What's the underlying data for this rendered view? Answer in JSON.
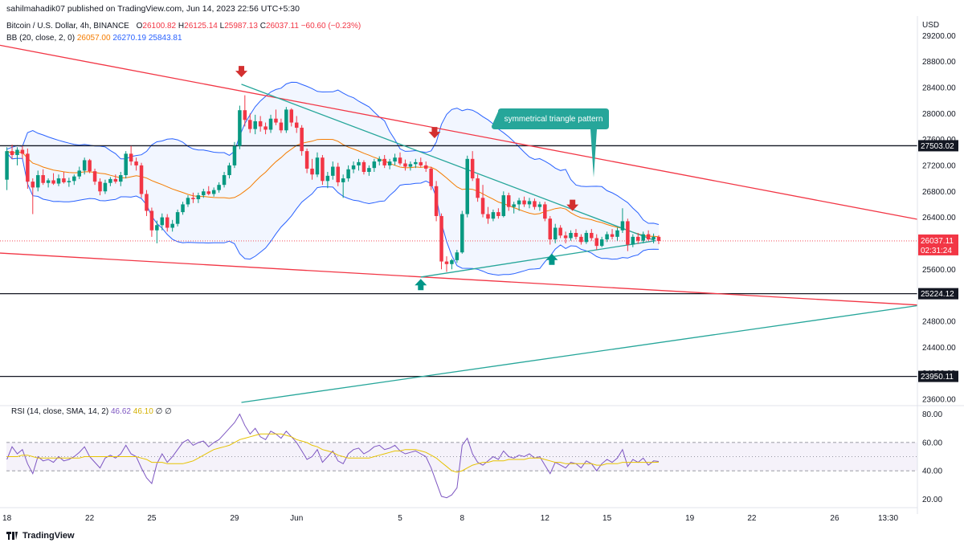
{
  "header": {
    "published": "sahilmahadik07 published on TradingView.com, Jun 14, 2023 22:56 UTC+5:30",
    "symbol": "Bitcoin / U.S. Dollar, 4h, BINANCE",
    "o_label": "O",
    "o": "26100.82",
    "h_label": "H",
    "h": "26125.14",
    "l_label": "L",
    "l": "25987.13",
    "c_label": "C",
    "c": "26037.11",
    "change": "−60.60 (−0.23%)",
    "bb_label": "BB (20, close, 2, 0)",
    "bb_basis": "26057.00",
    "bb_upper": "26270.19",
    "bb_lower": "25843.81",
    "rsi_label": "RSI (14, close, SMA, 14, 2)",
    "rsi_value": "46.62",
    "rsi_sma": "46.10",
    "rsi_extra1": "∅",
    "rsi_extra2": "∅"
  },
  "footer": {
    "brand": "TradingView"
  },
  "colors": {
    "up": "#089981",
    "down": "#f23645",
    "bb_basis": "#f57c00",
    "bb_band": "#2962ff",
    "red_line": "#f23645",
    "teal_line": "#26a69a",
    "rsi": "#7e57c2",
    "rsi_sma": "#e6c200",
    "label_bg": "#26a69a"
  },
  "chart_data": {
    "type": "candlestick",
    "currency": "USD",
    "price_ticks": [
      29200,
      28800,
      28400,
      28000,
      27600,
      27200,
      26800,
      26400,
      26000,
      25600,
      25200,
      24800,
      24400,
      24000,
      23600
    ],
    "price_tick_labels": [
      "29200.00",
      "28800.00",
      "28400.00",
      "28000.00",
      "27600.00",
      "27200.00",
      "26800.00",
      "26400.00",
      "26000.00",
      "25600.00",
      "25200.00",
      "24800.00",
      "24400.00",
      "24000.00",
      "23600.00"
    ],
    "ylim": [
      23500,
      29500
    ],
    "x_tick_labels": [
      "18",
      "22",
      "25",
      "29",
      "Jun",
      "5",
      "8",
      "12",
      "15",
      "19",
      "22",
      "26",
      "13:30"
    ],
    "x_ticks": [
      0,
      24,
      42,
      66,
      84,
      114,
      132,
      156,
      174,
      198,
      216,
      240,
      255.5
    ],
    "xlim": [
      -2,
      264
    ],
    "last_price": "26037.11",
    "countdown": "02:31:24",
    "horizontal_levels": [
      {
        "value": 27503.02,
        "label": "27503.02"
      },
      {
        "value": 25224.12,
        "label": "25224.12"
      },
      {
        "value": 23950.11,
        "label": "23950.11"
      }
    ],
    "annotation": "symmetrical triangle pattern",
    "channel_lines": [
      {
        "name": "upper red",
        "x": [
          -2,
          264
        ],
        "y": [
          29050,
          26370
        ]
      },
      {
        "name": "lower red",
        "x": [
          -2,
          264
        ],
        "y": [
          25850,
          25050
        ]
      },
      {
        "name": "teal long",
        "x": [
          68,
          264
        ],
        "y": [
          23550,
          25040
        ]
      },
      {
        "name": "triangle upper",
        "x": [
          68,
          188
        ],
        "y": [
          28450,
          26040
        ]
      },
      {
        "name": "triangle lower",
        "x": [
          120,
          188
        ],
        "y": [
          25480,
          26040
        ]
      }
    ],
    "arrows": [
      {
        "dir": "down",
        "x": 68,
        "y": 28620
      },
      {
        "dir": "down",
        "x": 124,
        "y": 27680
      },
      {
        "dir": "down",
        "x": 164,
        "y": 26560
      },
      {
        "dir": "up",
        "x": 120,
        "y": 25390
      },
      {
        "dir": "up",
        "x": 158,
        "y": 25780
      }
    ],
    "candles": [
      [
        26980,
        27480,
        26820,
        27420
      ],
      [
        27420,
        27520,
        27300,
        27360
      ],
      [
        27360,
        27480,
        27200,
        27440
      ],
      [
        27440,
        27500,
        27300,
        27380
      ],
      [
        27380,
        27460,
        26840,
        26950
      ],
      [
        26950,
        27000,
        26450,
        26860
      ],
      [
        26860,
        27120,
        26800,
        27050
      ],
      [
        27050,
        27140,
        26900,
        26930
      ],
      [
        26930,
        27000,
        26860,
        26970
      ],
      [
        26970,
        27080,
        26900,
        26920
      ],
      [
        26920,
        27060,
        26880,
        27000
      ],
      [
        27000,
        27100,
        26920,
        26940
      ],
      [
        26940,
        27010,
        26870,
        26960
      ],
      [
        26960,
        27060,
        26900,
        27030
      ],
      [
        27030,
        27180,
        26990,
        27120
      ],
      [
        27120,
        27320,
        27060,
        27280
      ],
      [
        27280,
        27300,
        27080,
        27110
      ],
      [
        27110,
        27150,
        26900,
        26950
      ],
      [
        26950,
        27000,
        26740,
        26800
      ],
      [
        26800,
        26980,
        26760,
        26930
      ],
      [
        26930,
        27020,
        26880,
        26990
      ],
      [
        26990,
        27060,
        26920,
        26950
      ],
      [
        26950,
        27100,
        26880,
        27050
      ],
      [
        27050,
        27420,
        27000,
        27380
      ],
      [
        27380,
        27500,
        27200,
        27260
      ],
      [
        27260,
        27320,
        27120,
        27200
      ],
      [
        27200,
        27240,
        26700,
        26760
      ],
      [
        26760,
        26820,
        26420,
        26500
      ],
      [
        26500,
        26550,
        26100,
        26200
      ],
      [
        26200,
        26350,
        26000,
        26280
      ],
      [
        26280,
        26460,
        26200,
        26400
      ],
      [
        26400,
        26450,
        26180,
        26240
      ],
      [
        26240,
        26360,
        26180,
        26300
      ],
      [
        26300,
        26520,
        26260,
        26480
      ],
      [
        26480,
        26640,
        26440,
        26600
      ],
      [
        26600,
        26740,
        26560,
        26700
      ],
      [
        26700,
        26780,
        26620,
        26680
      ],
      [
        26680,
        26780,
        26620,
        26740
      ],
      [
        26740,
        26840,
        26700,
        26800
      ],
      [
        26800,
        26880,
        26740,
        26760
      ],
      [
        26760,
        26860,
        26720,
        26820
      ],
      [
        26820,
        26940,
        26780,
        26900
      ],
      [
        26900,
        27100,
        26860,
        27050
      ],
      [
        27050,
        27240,
        27000,
        27200
      ],
      [
        27200,
        27560,
        27160,
        27500
      ],
      [
        27500,
        28120,
        27450,
        28050
      ],
      [
        28050,
        28280,
        27800,
        27900
      ],
      [
        27900,
        28000,
        27700,
        27760
      ],
      [
        27760,
        27980,
        27680,
        27880
      ],
      [
        27880,
        27960,
        27720,
        27800
      ],
      [
        27800,
        27860,
        27680,
        27750
      ],
      [
        27750,
        27980,
        27700,
        27920
      ],
      [
        27920,
        28060,
        27820,
        27860
      ],
      [
        27860,
        27920,
        27700,
        27740
      ],
      [
        27740,
        28100,
        27700,
        28060
      ],
      [
        28060,
        28080,
        27800,
        27860
      ],
      [
        27860,
        27960,
        27700,
        27780
      ],
      [
        27780,
        27820,
        27350,
        27420
      ],
      [
        27420,
        27460,
        27080,
        27150
      ],
      [
        27150,
        27300,
        26980,
        27060
      ],
      [
        27060,
        27400,
        27020,
        27320
      ],
      [
        27320,
        27360,
        26900,
        26960
      ],
      [
        26960,
        27100,
        26850,
        27040
      ],
      [
        27040,
        27260,
        26980,
        27180
      ],
      [
        27180,
        27240,
        26880,
        26940
      ],
      [
        26940,
        27060,
        26700,
        27000
      ],
      [
        27000,
        27200,
        26950,
        27140
      ],
      [
        27140,
        27260,
        27080,
        27200
      ],
      [
        27200,
        27300,
        27120,
        27250
      ],
      [
        27250,
        27280,
        27060,
        27100
      ],
      [
        27100,
        27200,
        27040,
        27160
      ],
      [
        27160,
        27300,
        27100,
        27260
      ],
      [
        27260,
        27340,
        27200,
        27300
      ],
      [
        27300,
        27360,
        27160,
        27200
      ],
      [
        27200,
        27300,
        27140,
        27260
      ],
      [
        27260,
        27380,
        27200,
        27320
      ],
      [
        27320,
        27400,
        27200,
        27230
      ],
      [
        27230,
        27290,
        27120,
        27180
      ],
      [
        27180,
        27260,
        27120,
        27220
      ],
      [
        27220,
        27300,
        27160,
        27250
      ],
      [
        27250,
        27320,
        27170,
        27200
      ],
      [
        27200,
        27260,
        27100,
        27150
      ],
      [
        27150,
        27180,
        26820,
        26880
      ],
      [
        26880,
        26960,
        26340,
        26420
      ],
      [
        26420,
        26460,
        25600,
        25720
      ],
      [
        25720,
        25800,
        25560,
        25680
      ],
      [
        25680,
        25760,
        25600,
        25740
      ],
      [
        25740,
        25900,
        25700,
        25860
      ],
      [
        25860,
        26500,
        25840,
        26450
      ],
      [
        26450,
        27350,
        26400,
        27300
      ],
      [
        27300,
        27420,
        26960,
        27000
      ],
      [
        27000,
        27060,
        26640,
        26700
      ],
      [
        26700,
        26900,
        26400,
        26450
      ],
      [
        26450,
        26560,
        26300,
        26380
      ],
      [
        26380,
        26520,
        26340,
        26480
      ],
      [
        26480,
        26540,
        26380,
        26420
      ],
      [
        26420,
        26800,
        26400,
        26740
      ],
      [
        26740,
        26780,
        26500,
        26560
      ],
      [
        26560,
        26640,
        26460,
        26600
      ],
      [
        26600,
        26700,
        26500,
        26660
      ],
      [
        26660,
        26720,
        26560,
        26600
      ],
      [
        26600,
        26700,
        26540,
        26650
      ],
      [
        26650,
        26690,
        26520,
        26560
      ],
      [
        26560,
        26640,
        26500,
        26600
      ],
      [
        26600,
        26640,
        26340,
        26380
      ],
      [
        26380,
        26420,
        25980,
        26060
      ],
      [
        26060,
        26300,
        26000,
        26240
      ],
      [
        26240,
        26280,
        26080,
        26120
      ],
      [
        26120,
        26180,
        26000,
        26080
      ],
      [
        26080,
        26200,
        26040,
        26160
      ],
      [
        26160,
        26220,
        26060,
        26100
      ],
      [
        26100,
        26140,
        25980,
        26020
      ],
      [
        26020,
        26200,
        25990,
        26160
      ],
      [
        26160,
        26220,
        26040,
        26080
      ],
      [
        26080,
        26140,
        25900,
        25960
      ],
      [
        25960,
        26100,
        25940,
        26060
      ],
      [
        26060,
        26180,
        26020,
        26140
      ],
      [
        26140,
        26220,
        26060,
        26100
      ],
      [
        26100,
        26240,
        26040,
        26200
      ],
      [
        26200,
        26540,
        26160,
        26340
      ],
      [
        26340,
        26380,
        25880,
        25980
      ],
      [
        25980,
        26140,
        25940,
        26100
      ],
      [
        26100,
        26160,
        25990,
        26040
      ],
      [
        26040,
        26180,
        26000,
        26140
      ],
      [
        26140,
        26200,
        26040,
        26060
      ],
      [
        26060,
        26150,
        26000,
        26100
      ],
      [
        26100,
        26125,
        25987,
        26037
      ]
    ],
    "candle_x_start": 0,
    "candle_x_step": 1.5,
    "rsi": {
      "ticks": [
        80,
        60,
        40,
        20
      ],
      "tick_labels": [
        "80.00",
        "60.00",
        "40.00",
        "20.00"
      ],
      "ylim": [
        14,
        86
      ],
      "upper_band": 60,
      "mid": 50,
      "lower_band": 40,
      "values": [
        48,
        57,
        52,
        55,
        45,
        38,
        50,
        47,
        48,
        46,
        50,
        47,
        48,
        50,
        53,
        57,
        50,
        46,
        42,
        49,
        51,
        49,
        52,
        58,
        52,
        50,
        42,
        35,
        31,
        45,
        52,
        46,
        50,
        55,
        60,
        62,
        58,
        60,
        61,
        57,
        60,
        62,
        66,
        70,
        74,
        80,
        72,
        66,
        70,
        64,
        62,
        68,
        66,
        63,
        68,
        64,
        60,
        54,
        48,
        50,
        55,
        46,
        50,
        54,
        47,
        45,
        52,
        55,
        56,
        52,
        54,
        57,
        58,
        55,
        56,
        58,
        54,
        52,
        53,
        54,
        52,
        50,
        42,
        32,
        22,
        21,
        23,
        28,
        58,
        63,
        52,
        46,
        44,
        47,
        50,
        48,
        54,
        50,
        49,
        51,
        50,
        52,
        49,
        50,
        44,
        38,
        46,
        44,
        42,
        46,
        45,
        42,
        47,
        45,
        40,
        45,
        48,
        46,
        49,
        55,
        43,
        48,
        46,
        49,
        44,
        47,
        46.62
      ],
      "sma": [
        50,
        50,
        50,
        51,
        51,
        50,
        49,
        49,
        49,
        49,
        49,
        49,
        49,
        49,
        49,
        50,
        50,
        50,
        50,
        50,
        50,
        50,
        50,
        50,
        50,
        50,
        49,
        48,
        46,
        46,
        46,
        45,
        45,
        45,
        45,
        46,
        47,
        49,
        51,
        53,
        55,
        56,
        57,
        58,
        60,
        62,
        63,
        64,
        65,
        66,
        66,
        66,
        66,
        66,
        65,
        64,
        62,
        61,
        60,
        58,
        57,
        55,
        54,
        53,
        51,
        50,
        49,
        49,
        49,
        49,
        49,
        50,
        51,
        52,
        53,
        54,
        54,
        55,
        55,
        55,
        54,
        53,
        51,
        49,
        46,
        43,
        40,
        39,
        40,
        42,
        44,
        45,
        46,
        46,
        47,
        47,
        47,
        48,
        48,
        48,
        48,
        49,
        49,
        49,
        48,
        47,
        46,
        46,
        45,
        45,
        45,
        45,
        45,
        45,
        44,
        44,
        45,
        45,
        45,
        46,
        46,
        46,
        46,
        46,
        46,
        46,
        46.1
      ]
    }
  }
}
